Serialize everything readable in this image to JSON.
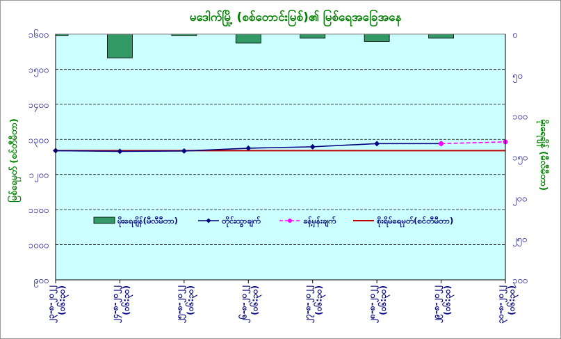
{
  "chart_data": {
    "type": "bar+line",
    "title": "မဒေါက်မြို့ (စစ်တောင်းမြစ်)၏ မြစ်ရေအခြေအနေ",
    "ylabel_left": "မြစ်ရေမှတ် (စင်တီမီတာ)",
    "ylabel_right": "မိုးရေချိန် (မီလီမီတာ)",
    "ylim_left": [
      900,
      1600
    ],
    "yticks_left": [
      900,
      1000,
      1100,
      1200,
      1300,
      1400,
      1500,
      1600
    ],
    "yticks_left_labels": [
      "၉၀၀",
      "၁၀၀၀",
      "၁၁၀၀",
      "၁၂၀၀",
      "၁၃၀၀",
      "၁၄၀၀",
      "၁၅၀၀",
      "၁၆၀၀"
    ],
    "ylim_right": [
      0,
      300
    ],
    "right_axis_inverted": true,
    "yticks_right": [
      0,
      50,
      100,
      150,
      200,
      250,
      300
    ],
    "yticks_right_labels": [
      "၀",
      "၅၀",
      "၁၀၀",
      "၁၅၀",
      "၂၀၀",
      "၂၅၀",
      "၃၀၀"
    ],
    "categories": [
      {
        "date": "၂၃-၈-၂၀၂၂",
        "time": "(၀၆:၃၀)"
      },
      {
        "date": "၂၄-၈-၂၀၂၂",
        "time": "(၀၆:၃၀)"
      },
      {
        "date": "၂၅-၈-၂၀၂၂",
        "time": "(၀၆:၃၀)"
      },
      {
        "date": "၂၆-၈-၂၀၂၂",
        "time": "(၀၆:၃၀)"
      },
      {
        "date": "၂၇-၈-၂၀၂၂",
        "time": "(၀၆:၃၀)"
      },
      {
        "date": "၂၈-၈-၂၀၂၂",
        "time": "(၀၆:၃၀)"
      },
      {
        "date": "၂၉-၈-၂၀၂၂",
        "time": "(၀၆:၃၀)"
      },
      {
        "date": "၃၀-၈-၂၀၂၂",
        "time": "(၀၆:၃၀)"
      }
    ],
    "series": [
      {
        "name": "မိုးရေချိန်(မီလီမီတာ)",
        "kind": "bar",
        "axis": "right",
        "color": "#339966",
        "values": [
          2,
          29,
          2,
          11,
          5,
          9,
          5,
          null
        ]
      },
      {
        "name": "တိုင်းထွာချက်",
        "kind": "line",
        "axis": "left",
        "color": "#000080",
        "marker": "diamond",
        "values": [
          1268,
          1266,
          1267,
          1275,
          1279,
          1288,
          1288,
          null
        ]
      },
      {
        "name": "ခန့်မှန်းချက်",
        "kind": "line-dashed",
        "axis": "left",
        "color": "#FF00FF",
        "marker": "circle",
        "values": [
          null,
          null,
          null,
          null,
          null,
          null,
          1288,
          1293
        ]
      },
      {
        "name": "စိုးရိမ်ရေမှတ်(စင်တီမီတာ)",
        "kind": "hline",
        "axis": "left",
        "color": "#C00000",
        "value": 1268
      }
    ],
    "grid": {
      "horizontal": true,
      "style": "dashed"
    },
    "legend_placement": "bottom-inside",
    "plot_background": "#CCFFFF"
  }
}
